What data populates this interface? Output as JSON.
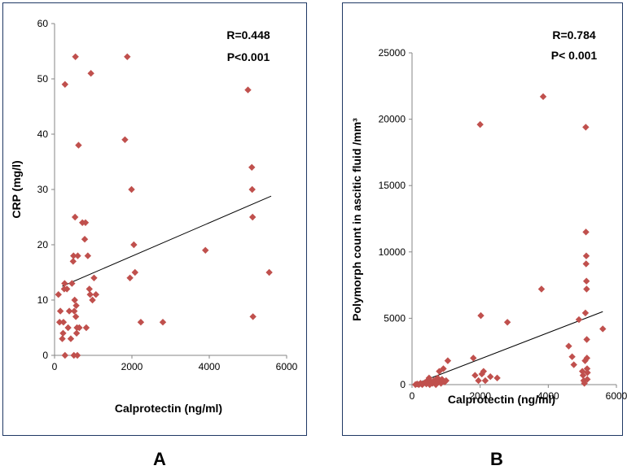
{
  "panels": {
    "A": {
      "label": "A"
    },
    "B": {
      "label": "B"
    }
  },
  "chart_data": [
    {
      "type": "scatter",
      "panel": "A",
      "xlabel": "Calprotectin (ng/ml)",
      "ylabel": "CRP (mg/l)",
      "xlim": [
        0,
        6000
      ],
      "ylim": [
        0,
        60
      ],
      "xticks": [
        0,
        2000,
        4000,
        6000
      ],
      "yticks": [
        0,
        10,
        20,
        30,
        40,
        50,
        60
      ],
      "annotations": [
        "R=0.448",
        "P<0.001"
      ],
      "marker_color": "#c0504d",
      "grid": false,
      "trendline": {
        "x": [
          200,
          5600
        ],
        "y": [
          12.5,
          28.8
        ]
      },
      "points": [
        [
          100,
          11
        ],
        [
          130,
          6
        ],
        [
          150,
          8
        ],
        [
          200,
          3
        ],
        [
          220,
          4
        ],
        [
          230,
          6
        ],
        [
          250,
          12
        ],
        [
          260,
          13
        ],
        [
          270,
          49
        ],
        [
          270,
          0
        ],
        [
          320,
          12
        ],
        [
          350,
          5
        ],
        [
          380,
          8
        ],
        [
          420,
          3
        ],
        [
          450,
          13
        ],
        [
          480,
          17
        ],
        [
          490,
          18
        ],
        [
          500,
          0
        ],
        [
          510,
          8
        ],
        [
          520,
          10
        ],
        [
          530,
          25
        ],
        [
          540,
          54
        ],
        [
          550,
          7
        ],
        [
          560,
          9
        ],
        [
          570,
          4
        ],
        [
          580,
          5
        ],
        [
          590,
          0
        ],
        [
          600,
          18
        ],
        [
          620,
          38
        ],
        [
          640,
          5
        ],
        [
          720,
          24
        ],
        [
          780,
          21
        ],
        [
          800,
          24
        ],
        [
          820,
          5
        ],
        [
          860,
          18
        ],
        [
          900,
          12
        ],
        [
          920,
          11
        ],
        [
          940,
          51
        ],
        [
          980,
          10
        ],
        [
          1020,
          14
        ],
        [
          1070,
          11
        ],
        [
          1820,
          39
        ],
        [
          1880,
          54
        ],
        [
          1950,
          14
        ],
        [
          1990,
          30
        ],
        [
          2050,
          20
        ],
        [
          2080,
          15
        ],
        [
          2230,
          6
        ],
        [
          2800,
          6
        ],
        [
          3900,
          19
        ],
        [
          5000,
          48
        ],
        [
          5100,
          34
        ],
        [
          5110,
          30
        ],
        [
          5120,
          25
        ],
        [
          5130,
          7
        ],
        [
          5550,
          15
        ]
      ]
    },
    {
      "type": "scatter",
      "panel": "B",
      "xlabel": "Calprotectin (ng/ml)",
      "ylabel": "Polymorph count in ascitic fluid /mm³",
      "xlim": [
        0,
        6000
      ],
      "ylim": [
        0,
        25000
      ],
      "xticks": [
        0,
        2000,
        4000,
        6000
      ],
      "yticks": [
        0,
        5000,
        10000,
        15000,
        20000,
        25000
      ],
      "annotations": [
        "R=0.784",
        "P< 0.001"
      ],
      "marker_color": "#c0504d",
      "grid": false,
      "trendline": {
        "x": [
          50,
          5600
        ],
        "y": [
          0,
          5500
        ]
      },
      "points": [
        [
          100,
          0
        ],
        [
          150,
          50
        ],
        [
          200,
          0
        ],
        [
          250,
          100
        ],
        [
          300,
          0
        ],
        [
          330,
          80
        ],
        [
          380,
          150
        ],
        [
          420,
          50
        ],
        [
          450,
          300
        ],
        [
          500,
          500
        ],
        [
          520,
          0
        ],
        [
          560,
          200
        ],
        [
          600,
          100
        ],
        [
          640,
          300
        ],
        [
          700,
          0
        ],
        [
          750,
          500
        ],
        [
          780,
          200
        ],
        [
          800,
          1000
        ],
        [
          850,
          100
        ],
        [
          880,
          400
        ],
        [
          920,
          1200
        ],
        [
          960,
          200
        ],
        [
          1000,
          300
        ],
        [
          1050,
          1800
        ],
        [
          1800,
          2000
        ],
        [
          1850,
          700
        ],
        [
          1950,
          300
        ],
        [
          2000,
          19600
        ],
        [
          2020,
          5200
        ],
        [
          2050,
          800
        ],
        [
          2100,
          1000
        ],
        [
          2150,
          300
        ],
        [
          2300,
          600
        ],
        [
          2500,
          500
        ],
        [
          2800,
          4700
        ],
        [
          3800,
          7200
        ],
        [
          3850,
          21700
        ],
        [
          4600,
          2900
        ],
        [
          4700,
          2100
        ],
        [
          4750,
          1500
        ],
        [
          4900,
          4900
        ],
        [
          5000,
          1000
        ],
        [
          5020,
          700
        ],
        [
          5040,
          300
        ],
        [
          5060,
          100
        ],
        [
          5080,
          1800
        ],
        [
          5090,
          5400
        ],
        [
          5100,
          19400
        ],
        [
          5105,
          11500
        ],
        [
          5110,
          9100
        ],
        [
          5115,
          9700
        ],
        [
          5120,
          7800
        ],
        [
          5125,
          7200
        ],
        [
          5130,
          3400
        ],
        [
          5135,
          2000
        ],
        [
          5140,
          1200
        ],
        [
          5145,
          400
        ],
        [
          5150,
          900
        ],
        [
          5600,
          4200
        ]
      ]
    }
  ]
}
